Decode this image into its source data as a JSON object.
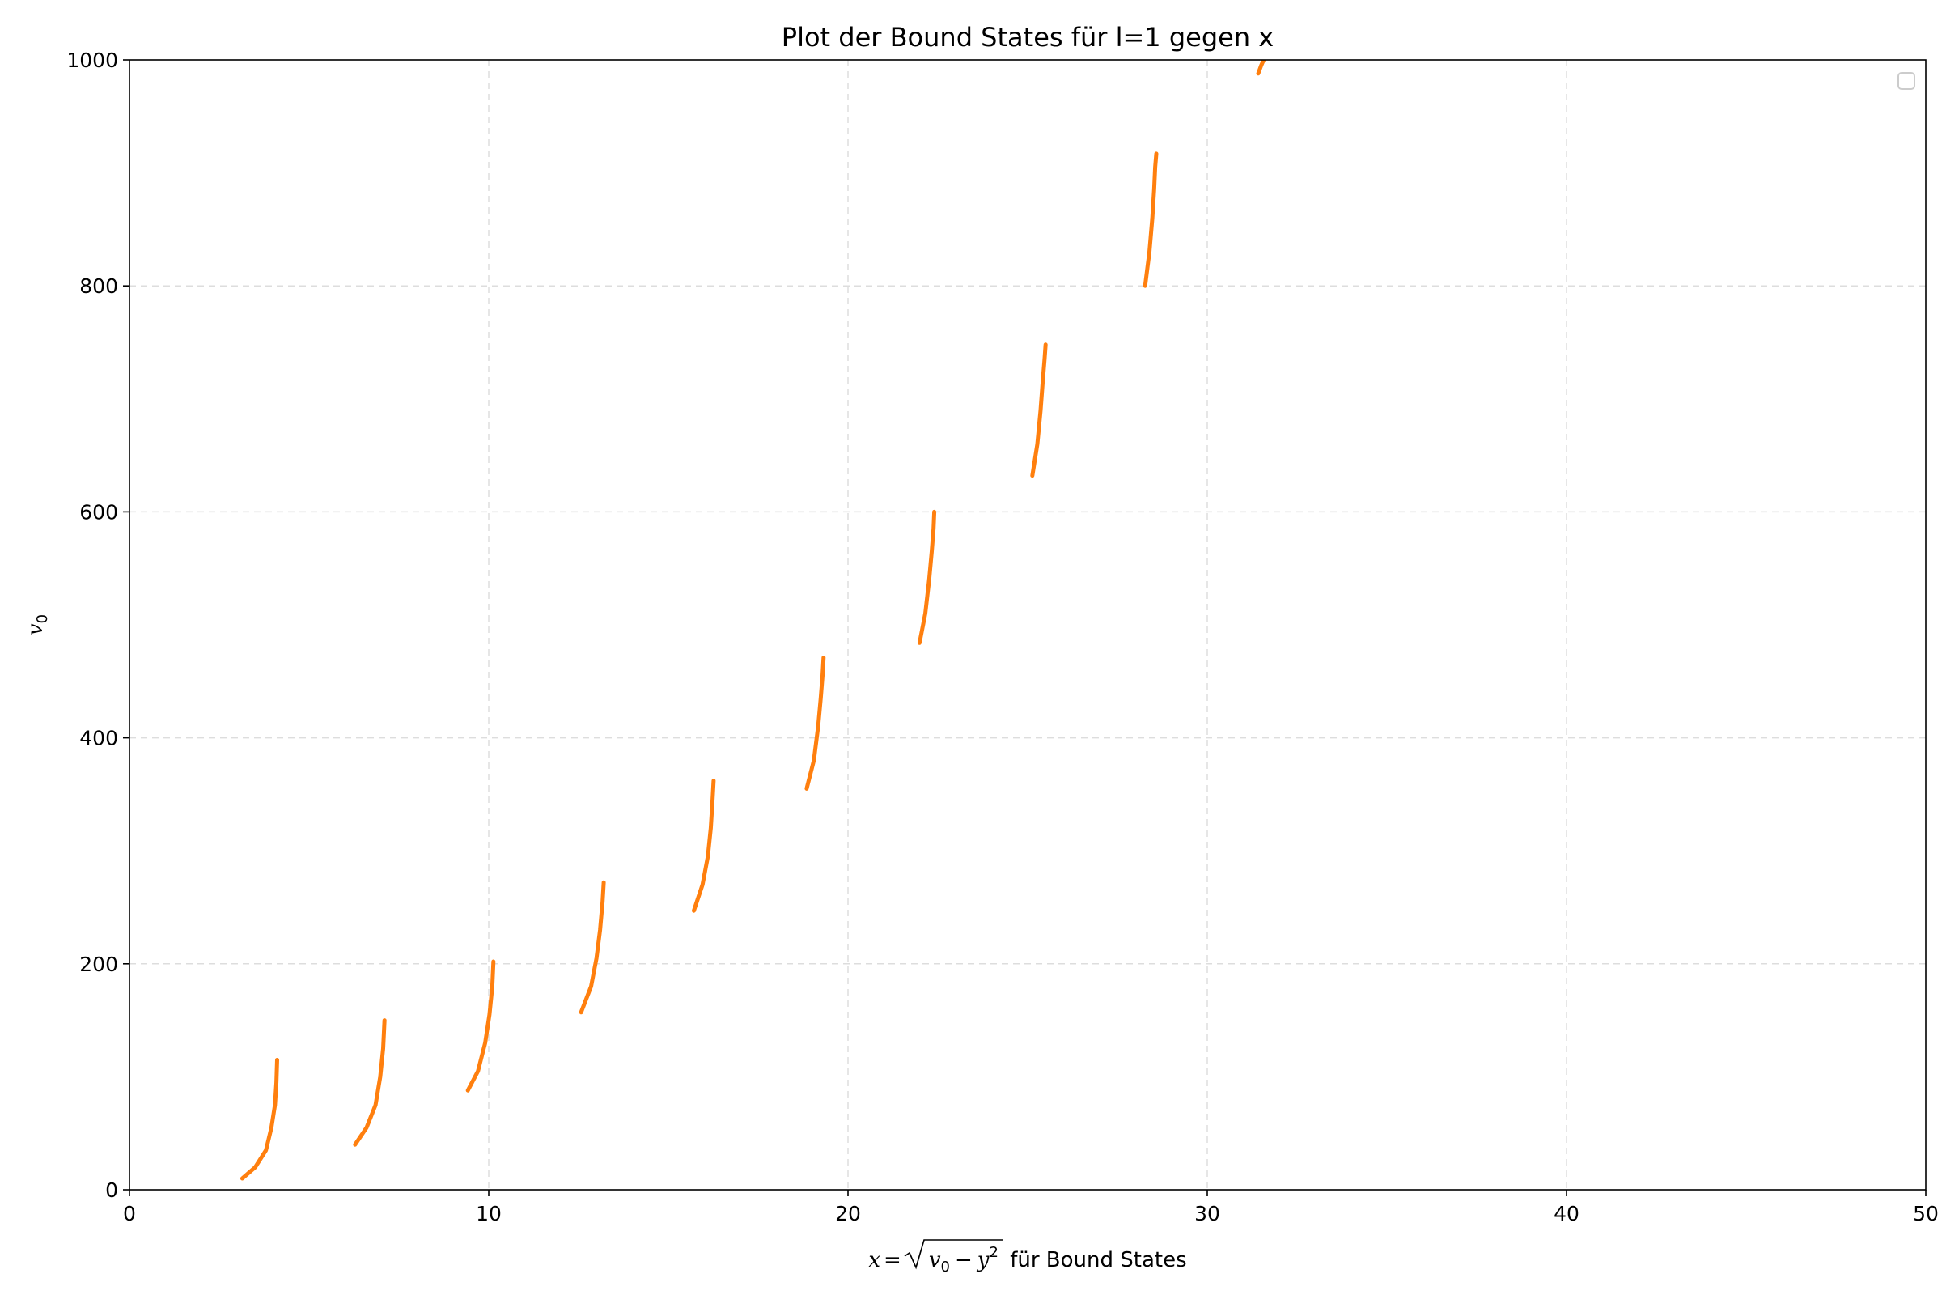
{
  "chart_data": {
    "type": "line",
    "title": "Plot der Bound States für l=1 gegen x",
    "xlabel": {
      "prefix": "x",
      "equals": "=",
      "inner": "v",
      "inner_sub": "0",
      "minus": "−",
      "y": "y",
      "y_sup": "2",
      "suffix": " für Bound States"
    },
    "ylabel": {
      "main": "v",
      "sub": "0"
    },
    "xlim": [
      0,
      50
    ],
    "ylim": [
      0,
      1000
    ],
    "xticks": [
      "0",
      "10",
      "20",
      "30",
      "40",
      "50"
    ],
    "yticks": [
      "0",
      "200",
      "400",
      "600",
      "800",
      "1000"
    ],
    "xtick_values": [
      0,
      10,
      20,
      30,
      40,
      50
    ],
    "ytick_values": [
      0,
      200,
      400,
      600,
      800,
      1000
    ],
    "grid": true,
    "legend": {
      "position": "top-right",
      "entries": []
    },
    "series_color": "#ff7f0e",
    "grid_color": "#dddddd",
    "branches": [
      {
        "x": [
          3.14,
          3.5,
          3.8,
          3.95,
          4.05,
          4.09,
          4.11
        ],
        "y": [
          10,
          20,
          35,
          55,
          75,
          95,
          115
        ]
      },
      {
        "x": [
          6.28,
          6.6,
          6.85,
          6.98,
          7.06,
          7.1
        ],
        "y": [
          40,
          55,
          75,
          100,
          125,
          150
        ]
      },
      {
        "x": [
          9.42,
          9.7,
          9.9,
          10.02,
          10.1,
          10.13
        ],
        "y": [
          88,
          105,
          130,
          155,
          180,
          202
        ]
      },
      {
        "x": [
          12.57,
          12.85,
          13.0,
          13.1,
          13.17,
          13.2
        ],
        "y": [
          157,
          180,
          205,
          230,
          255,
          272
        ]
      },
      {
        "x": [
          15.71,
          15.95,
          16.1,
          16.18,
          16.23,
          16.26
        ],
        "y": [
          247,
          270,
          295,
          320,
          345,
          362
        ]
      },
      {
        "x": [
          18.85,
          19.05,
          19.17,
          19.24,
          19.29,
          19.32
        ],
        "y": [
          355,
          380,
          410,
          435,
          455,
          471
        ]
      },
      {
        "x": [
          21.99,
          22.15,
          22.26,
          22.33,
          22.38,
          22.4
        ],
        "y": [
          484,
          510,
          540,
          565,
          585,
          600
        ]
      },
      {
        "x": [
          25.13,
          25.27,
          25.36,
          25.42,
          25.47,
          25.5
        ],
        "y": [
          632,
          660,
          690,
          715,
          735,
          748
        ]
      },
      {
        "x": [
          28.27,
          28.39,
          28.47,
          28.52,
          28.55,
          28.58
        ],
        "y": [
          800,
          830,
          860,
          885,
          905,
          917
        ]
      },
      {
        "x": [
          31.42,
          31.5,
          31.57,
          31.65
        ],
        "y": [
          988,
          995,
          1000,
          1010
        ]
      }
    ]
  }
}
